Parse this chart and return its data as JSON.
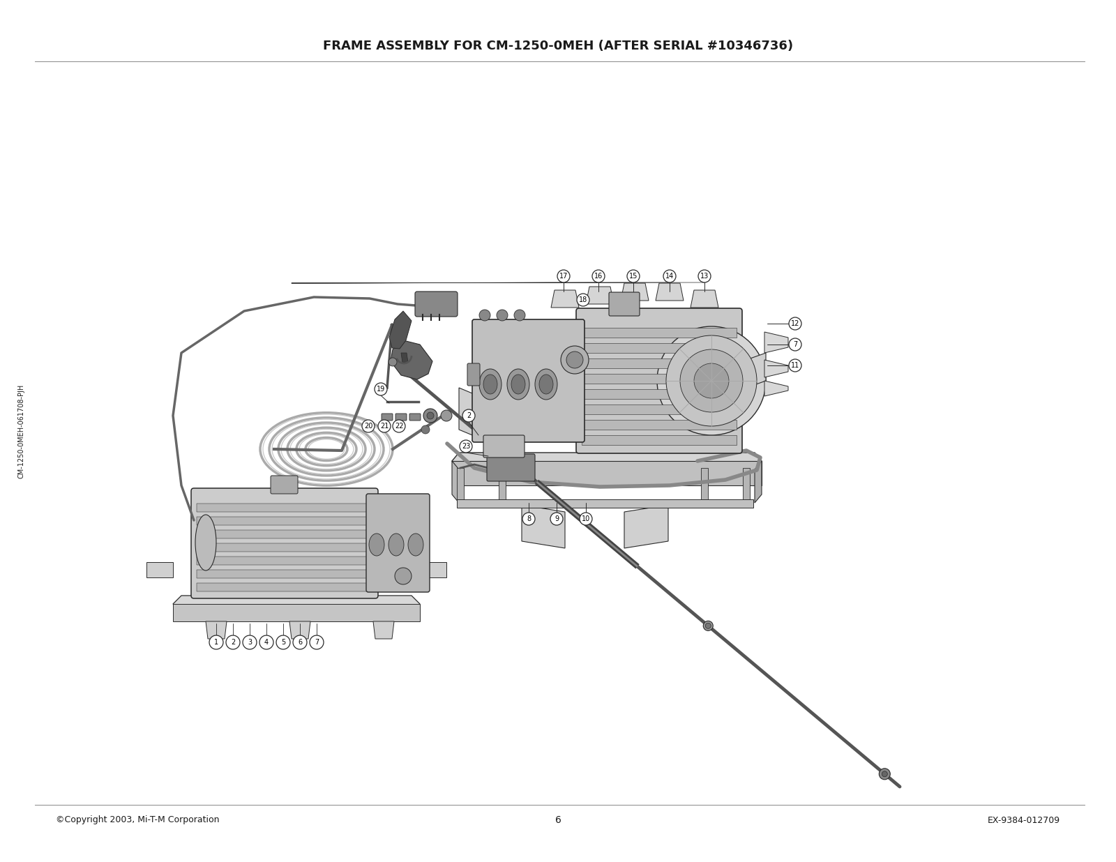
{
  "title": "FRAME ASSEMBLY FOR CM-1250-0MEH (AFTER SERIAL #10346736)",
  "title_fontsize": 13,
  "title_fontweight": "bold",
  "background_color": "#ffffff",
  "text_color": "#1a1a1a",
  "footer_left": "©Copyright 2003, Mi-T-M Corporation",
  "footer_center": "6",
  "footer_right": "EX-9384-012709",
  "side_text": "CM-1250-0MEH-061708-PJH",
  "line_color": "#2a2a2a",
  "fill_light": "#e8e8e8",
  "fill_medium": "#cccccc",
  "fill_dark": "#aaaaaa",
  "fill_motor": "#d0d0d0"
}
